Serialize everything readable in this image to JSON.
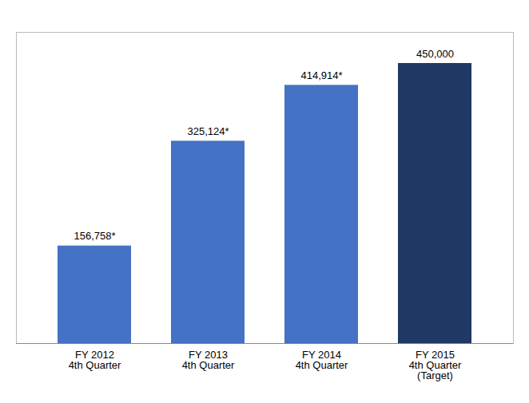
{
  "chart_data": {
    "type": "bar",
    "categories": [
      "FY 2012\n4th Quarter",
      "FY 2013\n4th Quarter",
      "FY 2014\n4th Quarter",
      "FY 2015\n4th Quarter\n(Target)"
    ],
    "values": [
      156758,
      325124,
      414914,
      450000
    ],
    "value_labels": [
      "156,758*",
      "325,124*",
      "414,914*",
      "450,000"
    ],
    "data_labels": true,
    "colors": [
      "#4472C4",
      "#4472C4",
      "#4472C4",
      "#1F3864"
    ],
    "ylim": [
      0,
      500000
    ],
    "tick_labels": "x",
    "grid": false
  }
}
